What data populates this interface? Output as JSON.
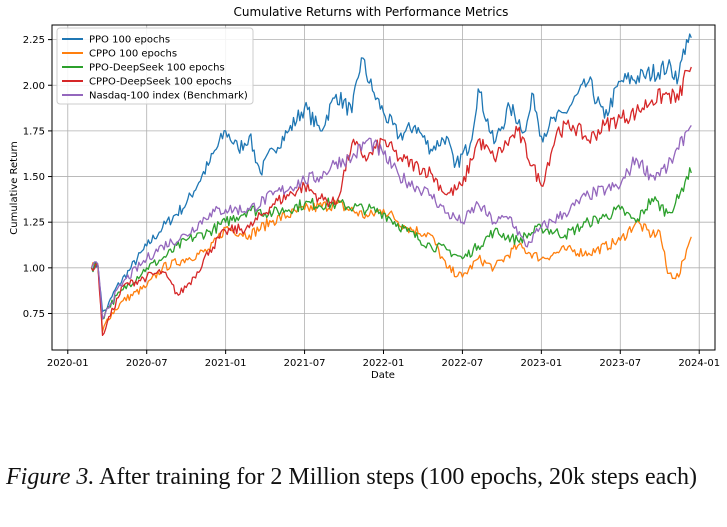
{
  "chart_data": {
    "type": "line",
    "title": "Cumulative Returns with Performance Metrics",
    "xlabel": "Date",
    "ylabel": "Cumulative Return",
    "grid": true,
    "legend_position": "top-left",
    "x_range": [
      2019.9,
      2024.1
    ],
    "ylim": [
      0.55,
      2.33
    ],
    "x_ticks": [
      {
        "value": 2020.0,
        "label": "2020-01"
      },
      {
        "value": 2020.5,
        "label": "2020-07"
      },
      {
        "value": 2021.0,
        "label": "2021-01"
      },
      {
        "value": 2021.5,
        "label": "2021-07"
      },
      {
        "value": 2022.0,
        "label": "2022-01"
      },
      {
        "value": 2022.5,
        "label": "2022-07"
      },
      {
        "value": 2023.0,
        "label": "2023-01"
      },
      {
        "value": 2023.5,
        "label": "2023-07"
      },
      {
        "value": 2024.0,
        "label": "2024-01"
      }
    ],
    "y_ticks": [
      {
        "value": 0.75,
        "label": "0.75"
      },
      {
        "value": 1.0,
        "label": "1.00"
      },
      {
        "value": 1.25,
        "label": "1.25"
      },
      {
        "value": 1.5,
        "label": "1.50"
      },
      {
        "value": 1.75,
        "label": "1.75"
      },
      {
        "value": 2.0,
        "label": "2.00"
      },
      {
        "value": 2.25,
        "label": "2.25"
      }
    ],
    "series": [
      {
        "name": "PPO 100 epochs",
        "color": "#1f77b4",
        "x": [
          2020.15,
          2020.19,
          2020.22,
          2020.25,
          2020.3,
          2020.4,
          2020.5,
          2020.6,
          2020.75,
          2020.9,
          2021.0,
          2021.08,
          2021.15,
          2021.22,
          2021.3,
          2021.4,
          2021.5,
          2021.6,
          2021.7,
          2021.8,
          2021.86,
          2021.93,
          2022.0,
          2022.1,
          2022.2,
          2022.3,
          2022.4,
          2022.45,
          2022.55,
          2022.6,
          2022.7,
          2022.8,
          2022.9,
          2022.95,
          2023.0,
          2023.05,
          2023.15,
          2023.3,
          2023.4,
          2023.5,
          2023.65,
          2023.8,
          2023.87,
          2023.92,
          2023.95
        ],
        "y": [
          1.0,
          1.02,
          0.76,
          0.78,
          0.88,
          1.0,
          1.12,
          1.22,
          1.35,
          1.58,
          1.75,
          1.65,
          1.72,
          1.52,
          1.65,
          1.75,
          1.88,
          1.75,
          1.95,
          1.85,
          2.15,
          1.97,
          1.85,
          1.72,
          1.78,
          1.65,
          1.72,
          1.55,
          1.68,
          1.98,
          1.68,
          1.88,
          1.75,
          1.95,
          1.72,
          1.78,
          1.85,
          2.02,
          1.82,
          2.02,
          2.05,
          2.1,
          2.05,
          2.25,
          2.26
        ]
      },
      {
        "name": "CPPO 100 epochs",
        "color": "#ff7f0e",
        "x": [
          2020.15,
          2020.19,
          2020.22,
          2020.25,
          2020.35,
          2020.5,
          2020.6,
          2020.75,
          2020.9,
          2021.0,
          2021.15,
          2021.3,
          2021.5,
          2021.7,
          2021.9,
          2022.0,
          2022.15,
          2022.3,
          2022.4,
          2022.5,
          2022.6,
          2022.7,
          2022.85,
          2023.0,
          2023.15,
          2023.3,
          2023.5,
          2023.6,
          2023.7,
          2023.75,
          2023.8,
          2023.87,
          2023.92,
          2023.95
        ],
        "y": [
          1.0,
          1.02,
          0.65,
          0.72,
          0.82,
          0.9,
          1.0,
          1.05,
          1.1,
          1.22,
          1.18,
          1.26,
          1.32,
          1.35,
          1.28,
          1.32,
          1.22,
          1.18,
          1.0,
          0.95,
          1.05,
          1.0,
          1.12,
          1.05,
          1.1,
          1.08,
          1.15,
          1.25,
          1.18,
          1.2,
          0.97,
          0.95,
          1.1,
          1.17
        ]
      },
      {
        "name": "PPO-DeepSeek 100 epochs",
        "color": "#2ca02c",
        "x": [
          2020.15,
          2020.19,
          2020.22,
          2020.25,
          2020.35,
          2020.5,
          2020.6,
          2020.75,
          2020.9,
          2021.0,
          2021.15,
          2021.3,
          2021.5,
          2021.7,
          2021.9,
          2022.0,
          2022.15,
          2022.3,
          2022.4,
          2022.5,
          2022.6,
          2022.7,
          2022.85,
          2023.0,
          2023.15,
          2023.3,
          2023.4,
          2023.5,
          2023.6,
          2023.7,
          2023.8,
          2023.87,
          2023.92,
          2023.95
        ],
        "y": [
          1.0,
          1.02,
          0.72,
          0.78,
          0.88,
          1.0,
          1.05,
          1.15,
          1.2,
          1.25,
          1.32,
          1.3,
          1.35,
          1.35,
          1.32,
          1.3,
          1.2,
          1.12,
          1.1,
          1.05,
          1.12,
          1.2,
          1.15,
          1.22,
          1.18,
          1.25,
          1.28,
          1.32,
          1.25,
          1.38,
          1.3,
          1.38,
          1.5,
          1.52
        ]
      },
      {
        "name": "CPPO-DeepSeek 100 epochs",
        "color": "#d62728",
        "x": [
          2020.15,
          2020.19,
          2020.22,
          2020.25,
          2020.35,
          2020.5,
          2020.6,
          2020.7,
          2020.8,
          2020.9,
          2021.0,
          2021.15,
          2021.3,
          2021.5,
          2021.6,
          2021.7,
          2021.8,
          2021.9,
          2022.0,
          2022.1,
          2022.3,
          2022.4,
          2022.5,
          2022.6,
          2022.7,
          2022.85,
          2023.0,
          2023.1,
          2023.2,
          2023.3,
          2023.4,
          2023.5,
          2023.6,
          2023.7,
          2023.8,
          2023.87,
          2023.92,
          2023.95
        ],
        "y": [
          1.0,
          1.02,
          0.63,
          0.7,
          0.9,
          0.95,
          0.98,
          0.85,
          0.95,
          1.1,
          1.2,
          1.22,
          1.35,
          1.45,
          1.38,
          1.35,
          1.68,
          1.6,
          1.7,
          1.6,
          1.52,
          1.4,
          1.45,
          1.7,
          1.6,
          1.75,
          1.45,
          1.75,
          1.78,
          1.7,
          1.78,
          1.82,
          1.85,
          1.92,
          1.95,
          1.92,
          2.08,
          2.1
        ]
      },
      {
        "name": "Nasdaq-100 index (Benchmark)",
        "color": "#9467bd",
        "x": [
          2020.15,
          2020.19,
          2020.22,
          2020.25,
          2020.35,
          2020.5,
          2020.6,
          2020.75,
          2020.9,
          2021.0,
          2021.15,
          2021.3,
          2021.5,
          2021.6,
          2021.7,
          2021.8,
          2021.9,
          2022.0,
          2022.1,
          2022.3,
          2022.4,
          2022.5,
          2022.6,
          2022.7,
          2022.8,
          2022.9,
          2023.0,
          2023.15,
          2023.3,
          2023.5,
          2023.6,
          2023.7,
          2023.8,
          2023.87,
          2023.92,
          2023.95
        ],
        "y": [
          1.0,
          1.02,
          0.72,
          0.78,
          0.92,
          1.05,
          1.12,
          1.18,
          1.3,
          1.32,
          1.32,
          1.4,
          1.48,
          1.5,
          1.58,
          1.6,
          1.7,
          1.62,
          1.5,
          1.4,
          1.3,
          1.25,
          1.35,
          1.25,
          1.28,
          1.12,
          1.22,
          1.3,
          1.4,
          1.45,
          1.6,
          1.5,
          1.55,
          1.65,
          1.75,
          1.78
        ]
      }
    ]
  },
  "caption": {
    "figure_label": "Figure 3.",
    "text": " After training for 2 Million steps (100 epochs, 20k steps each)"
  }
}
